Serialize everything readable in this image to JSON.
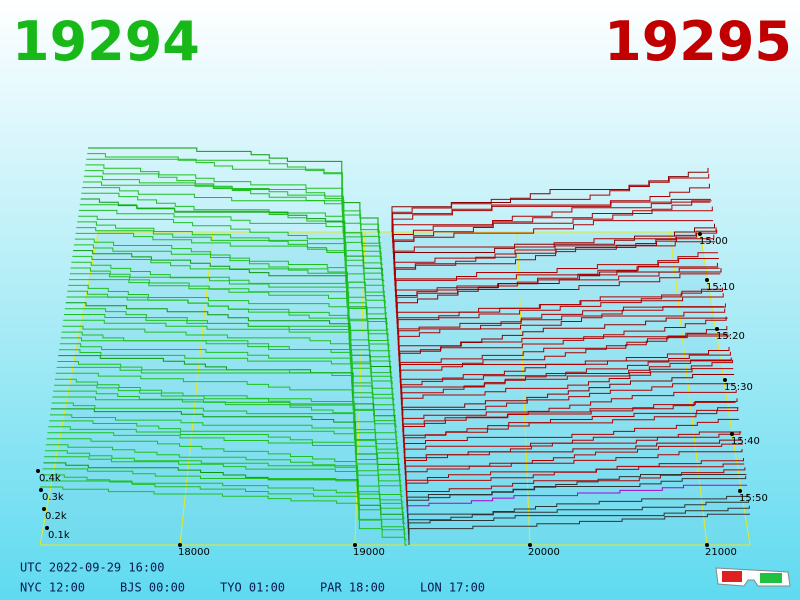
{
  "header": {
    "bid_price": "19294",
    "ask_price": "19295"
  },
  "depth_axis": {
    "labels": [
      "0.4k",
      "0.3k",
      "0.2k",
      "0.1k"
    ]
  },
  "price_axis": {
    "labels": [
      "18000",
      "19000",
      "20000",
      "21000"
    ]
  },
  "time_axis": {
    "labels": [
      "15:00",
      "15:10",
      "15:20",
      "15:30",
      "15:40",
      "15:50"
    ]
  },
  "footer": {
    "utc": "UTC 2022-09-29 16:00",
    "clocks": [
      "NYC 12:00",
      "BJS 00:00",
      "TYO 01:00",
      "PAR 18:00",
      "LON 17:00"
    ]
  }
}
